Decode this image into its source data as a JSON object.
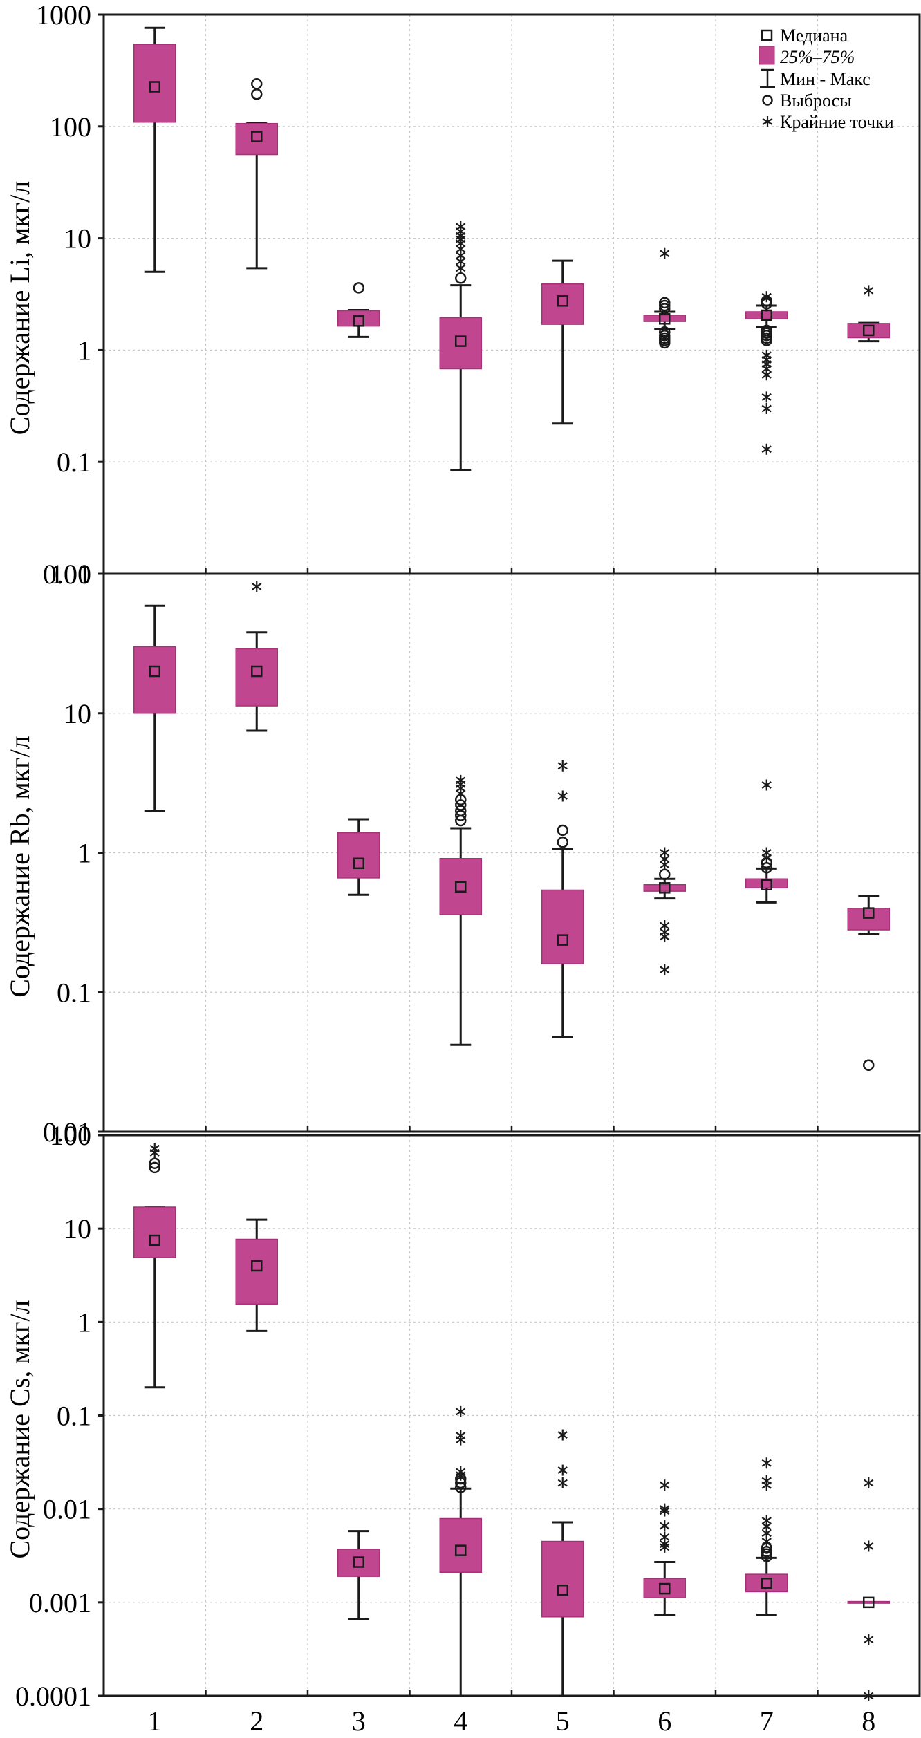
{
  "chart_data": [
    {
      "type": "boxplot",
      "title": "",
      "ylabel": "Содержание Li, мкг/л",
      "xlabel": "",
      "yscale": "log",
      "ylim": [
        0.01,
        1000
      ],
      "yticks": [
        "1000",
        "100",
        "10",
        "1",
        "0.1",
        "0.01"
      ],
      "ytick_values": [
        1000,
        100,
        10,
        1,
        0.1,
        0.01
      ],
      "grid": true,
      "legend_position": "top-right",
      "categories": [
        "1",
        "2",
        "3",
        "4",
        "5",
        "6",
        "7",
        "8"
      ],
      "boxes": [
        {
          "category": "1",
          "min": 5.0,
          "q1": 109,
          "median": 226,
          "q3": 540,
          "max": 760,
          "outliers": [],
          "extremes": []
        },
        {
          "category": "2",
          "min": 5.4,
          "q1": 56,
          "median": 81,
          "q3": 106,
          "max": 107,
          "outliers": [
            194,
            240
          ],
          "extremes": []
        },
        {
          "category": "3",
          "min": 1.31,
          "q1": 1.64,
          "median": 1.82,
          "q3": 2.25,
          "max": 2.28,
          "outliers": [
            3.6
          ],
          "extremes": []
        },
        {
          "category": "4",
          "min": 0.085,
          "q1": 0.68,
          "median": 1.2,
          "q3": 1.95,
          "max": 3.8,
          "outliers": [
            4.4
          ],
          "extremes": [
            5.4,
            6.2,
            7.0,
            8.0,
            9.0,
            9.8,
            10.5,
            11.5,
            12.7
          ]
        },
        {
          "category": "5",
          "min": 0.22,
          "q1": 1.7,
          "median": 2.75,
          "q3": 3.9,
          "max": 6.3,
          "outliers": [],
          "extremes": []
        },
        {
          "category": "6",
          "min": 1.55,
          "q1": 1.8,
          "median": 1.9,
          "q3": 2.05,
          "max": 2.2,
          "outliers": [
            2.35,
            2.5,
            2.65,
            1.45,
            1.35,
            1.28,
            1.22,
            1.16
          ],
          "extremes": [
            7.3
          ]
        },
        {
          "category": "7",
          "min": 1.6,
          "q1": 1.9,
          "median": 2.05,
          "q3": 2.2,
          "max": 2.5,
          "outliers": [
            2.6,
            2.75,
            1.5,
            1.42,
            1.35,
            1.28,
            1.22
          ],
          "extremes": [
            3.0,
            0.9,
            0.82,
            0.75,
            0.68,
            0.6,
            0.38,
            0.3,
            0.13
          ]
        },
        {
          "category": "8",
          "min": 1.2,
          "q1": 1.29,
          "median": 1.5,
          "q3": 1.73,
          "max": 1.75,
          "outliers": [],
          "extremes": [
            3.4
          ]
        }
      ]
    },
    {
      "type": "boxplot",
      "title": "",
      "ylabel": "Содержание Rb, мкг/л",
      "xlabel": "",
      "yscale": "log",
      "ylim": [
        0.01,
        100
      ],
      "yticks": [
        "100",
        "10",
        "1",
        "0.1",
        "0.01"
      ],
      "ytick_values": [
        100,
        10,
        1,
        0.1,
        0.01
      ],
      "grid": true,
      "categories": [
        "1",
        "2",
        "3",
        "4",
        "5",
        "6",
        "7",
        "8"
      ],
      "boxes": [
        {
          "category": "1",
          "min": 2.0,
          "q1": 10,
          "median": 20,
          "q3": 30,
          "max": 59,
          "outliers": [],
          "extremes": []
        },
        {
          "category": "2",
          "min": 7.5,
          "q1": 11.3,
          "median": 20,
          "q3": 29,
          "max": 38,
          "outliers": [],
          "extremes": [
            81
          ]
        },
        {
          "category": "3",
          "min": 0.5,
          "q1": 0.66,
          "median": 0.84,
          "q3": 1.39,
          "max": 1.74,
          "outliers": [],
          "extremes": []
        },
        {
          "category": "4",
          "min": 0.042,
          "q1": 0.36,
          "median": 0.57,
          "q3": 0.91,
          "max": 1.5,
          "outliers": [
            1.7,
            1.85,
            2.0,
            2.2,
            2.4
          ],
          "extremes": [
            2.65,
            2.9,
            3.1,
            3.3
          ]
        },
        {
          "category": "5",
          "min": 0.048,
          "q1": 0.16,
          "median": 0.237,
          "q3": 0.54,
          "max": 1.07,
          "outliers": [
            1.19,
            1.45
          ],
          "extremes": [
            2.55,
            4.2
          ]
        },
        {
          "category": "6",
          "min": 0.47,
          "q1": 0.53,
          "median": 0.56,
          "q3": 0.59,
          "max": 0.65,
          "outliers": [
            0.7
          ],
          "extremes": [
            0.82,
            0.9,
            1.0,
            0.3,
            0.27,
            0.25,
            0.145
          ]
        },
        {
          "category": "7",
          "min": 0.44,
          "q1": 0.56,
          "median": 0.59,
          "q3": 0.65,
          "max": 0.77,
          "outliers": [
            0.78,
            0.85
          ],
          "extremes": [
            0.92,
            1.0,
            3.06
          ]
        },
        {
          "category": "8",
          "min": 0.26,
          "q1": 0.28,
          "median": 0.37,
          "q3": 0.4,
          "max": 0.49,
          "outliers": [
            0.03
          ],
          "extremes": []
        }
      ]
    },
    {
      "type": "boxplot",
      "title": "",
      "ylabel": "Содержание Cs, мкг/л",
      "xlabel": "",
      "yscale": "log",
      "ylim": [
        0.0001,
        100
      ],
      "yticks": [
        "100",
        "10",
        "1",
        "0.1",
        "0.01",
        "0.001",
        "0.0001"
      ],
      "ytick_values": [
        100,
        10,
        1,
        0.1,
        0.01,
        0.001,
        0.0001
      ],
      "grid": true,
      "categories": [
        "1",
        "2",
        "3",
        "4",
        "5",
        "6",
        "7",
        "8"
      ],
      "boxes": [
        {
          "category": "1",
          "min": 0.2,
          "q1": 4.9,
          "median": 7.5,
          "q3": 17,
          "max": 17,
          "outliers": [
            45,
            50
          ],
          "extremes": [
            65,
            72
          ]
        },
        {
          "category": "2",
          "min": 0.8,
          "q1": 1.56,
          "median": 4.0,
          "q3": 7.7,
          "max": 12.5,
          "outliers": [],
          "extremes": []
        },
        {
          "category": "3",
          "min": 0.00066,
          "q1": 0.0019,
          "median": 0.0027,
          "q3": 0.0037,
          "max": 0.0058,
          "outliers": [],
          "extremes": []
        },
        {
          "category": "4",
          "min": 0.0001,
          "q1": 0.0021,
          "median": 0.0036,
          "q3": 0.0079,
          "max": 0.0165,
          "outliers": [
            0.017,
            0.019,
            0.021
          ],
          "extremes": [
            0.023,
            0.025,
            0.055,
            0.061,
            0.11
          ]
        },
        {
          "category": "5",
          "min": 0.0001,
          "q1": 0.0007,
          "median": 0.00135,
          "q3": 0.0045,
          "max": 0.0072,
          "outliers": [],
          "extremes": [
            0.019,
            0.026,
            0.062
          ]
        },
        {
          "category": "6",
          "min": 0.00073,
          "q1": 0.00112,
          "median": 0.0014,
          "q3": 0.0018,
          "max": 0.0027,
          "outliers": [],
          "extremes": [
            0.0039,
            0.0042,
            0.005,
            0.0066,
            0.0095,
            0.01,
            0.018
          ]
        },
        {
          "category": "7",
          "min": 0.00074,
          "q1": 0.0013,
          "median": 0.0016,
          "q3": 0.002,
          "max": 0.003,
          "outliers": [
            0.0031,
            0.0033,
            0.0035,
            0.0038
          ],
          "extremes": [
            0.0045,
            0.0055,
            0.0065,
            0.0075,
            0.018,
            0.02,
            0.031
          ]
        },
        {
          "category": "8",
          "min": 0.001,
          "q1": 0.001,
          "median": 0.001,
          "q3": 0.001,
          "max": 0.001,
          "outliers": [],
          "extremes": [
            0.019,
            0.004,
            0.0004,
            0.0001
          ]
        }
      ]
    }
  ],
  "legend": {
    "items": [
      {
        "icon": "median-square-icon",
        "label": "Медиана"
      },
      {
        "icon": "iqr-box-icon",
        "label": "25%–75%"
      },
      {
        "icon": "min-max-whisker-icon",
        "label": "Мин - Макс"
      },
      {
        "icon": "outlier-circle-icon",
        "label": "Выбросы"
      },
      {
        "icon": "extreme-asterisk-icon",
        "label": "Крайние точки"
      }
    ]
  },
  "colors": {
    "box_fill": "#C0478F",
    "box_stroke": "#A8307A",
    "ink": "#1a1a1a",
    "grid": "#c8c8c8"
  }
}
